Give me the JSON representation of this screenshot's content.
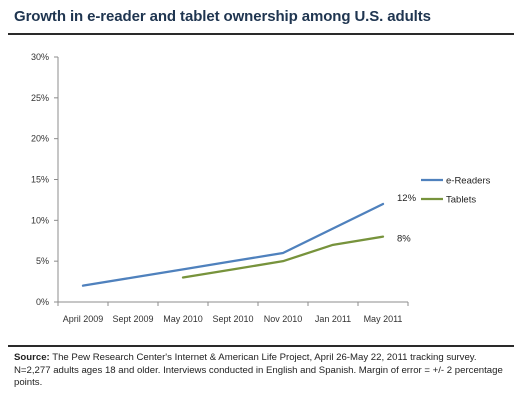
{
  "header": {
    "title": "Growth in e-reader and tablet ownership among U.S. adults"
  },
  "chart_data": {
    "type": "line",
    "title": "Growth in e-reader and tablet ownership among U.S. adults",
    "xlabel": "",
    "ylabel": "",
    "categories": [
      "April 2009",
      "Sept 2009",
      "May 2010",
      "Sept 2010",
      "Nov 2010",
      "Jan 2011",
      "May 2011"
    ],
    "ylim": [
      0,
      30
    ],
    "yticks": [
      "0%",
      "5%",
      "10%",
      "15%",
      "20%",
      "25%",
      "30%"
    ],
    "grid": false,
    "legend_position": "right",
    "series": [
      {
        "name": "e-Readers",
        "color": "#4f81bd",
        "values": [
          2,
          3,
          4,
          5,
          6,
          9,
          12
        ],
        "end_label": "12%"
      },
      {
        "name": "Tablets",
        "color": "#77933c",
        "values": [
          null,
          null,
          3,
          4,
          5,
          7,
          8
        ],
        "end_label": "8%"
      }
    ]
  },
  "footer": {
    "source_label": "Source:",
    "source_text": " The Pew Research Center's Internet & American Life Project, April 26-May 22, 2011 tracking survey. N=2,277 adults ages 18 and older. Interviews conducted in English and Spanish. Margin of error = +/- 2 percentage points."
  }
}
